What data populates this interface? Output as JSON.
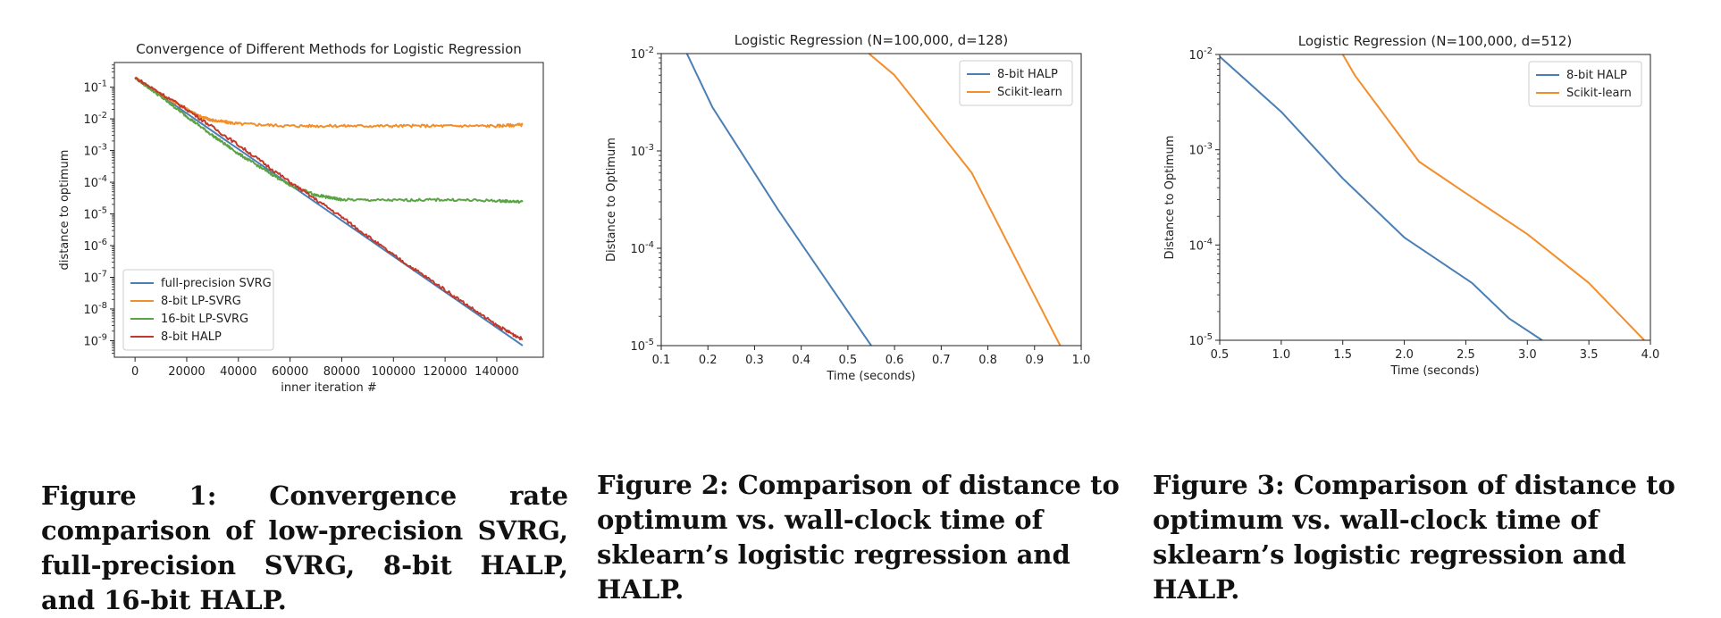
{
  "colors": {
    "blue": "#4a7fb5",
    "orange": "#f28e2b",
    "green": "#5ba345",
    "red": "#c0392b",
    "axis": "#222222"
  },
  "captions": [
    "Figure 1: Convergence rate comparison of low-precision SVRG, full-precision SVRG, 8-bit HALP, and 16-bit HALP.",
    "Figure 2: Comparison of distance to optimum vs. wall-clock time of sklearn’s logistic regression and HALP.",
    "Figure 3: Comparison of distance to optimum vs. wall-clock time of sklearn’s logistic regression and HALP."
  ],
  "chart_data": [
    {
      "type": "line",
      "title": "Convergence of Different Methods for Logistic Regression",
      "xlabel": "inner iteration #",
      "ylabel": "distance to optimum",
      "xlim": [
        -8000,
        158000
      ],
      "ylim": [
        3e-10,
        0.6
      ],
      "yscale": "log",
      "grid": false,
      "legend_position": "lower-left",
      "x_ticks": [
        0,
        20000,
        40000,
        60000,
        80000,
        100000,
        120000,
        140000
      ],
      "x_tick_labels": [
        "0",
        "20000",
        "40000",
        "60000",
        "80000",
        "100000",
        "120000",
        "140000"
      ],
      "y_ticks": [
        1e-09,
        1e-08,
        1e-07,
        1e-06,
        1e-05,
        0.0001,
        0.001,
        0.01,
        0.1
      ],
      "y_tick_labels": [
        "10^-9",
        "10^-8",
        "10^-7",
        "10^-6",
        "10^-5",
        "10^-4",
        "10^-3",
        "10^-2",
        "10^-1"
      ],
      "series": [
        {
          "name": "full-precision SVRG",
          "color": "#4a7fb5",
          "noise": 0,
          "x": [
            0,
            150000
          ],
          "y": [
            0.2,
            7e-10
          ]
        },
        {
          "name": "8-bit LP-SVRG",
          "color": "#f28e2b",
          "noise": 0.045,
          "x": [
            0,
            10000,
            20000,
            25000,
            30000,
            40000,
            60000,
            80000,
            100000,
            120000,
            140000,
            150000
          ],
          "y": [
            0.2,
            0.06,
            0.02,
            0.012,
            0.009,
            0.007,
            0.006,
            0.006,
            0.006,
            0.006,
            0.006,
            0.0065
          ]
        },
        {
          "name": "16-bit LP-SVRG",
          "color": "#5ba345",
          "noise": 0.04,
          "x": [
            0,
            10000,
            20000,
            30000,
            40000,
            50000,
            60000,
            70000,
            75000,
            80000,
            100000,
            120000,
            140000,
            150000
          ],
          "y": [
            0.2,
            0.05,
            0.012,
            0.003,
            0.0008,
            0.00025,
            8e-05,
            4e-05,
            3.3e-05,
            2.8e-05,
            2.7e-05,
            2.8e-05,
            2.6e-05,
            2.4e-05
          ]
        },
        {
          "name": "8-bit HALP",
          "color": "#c0392b",
          "noise": 0.05,
          "x": [
            0,
            20000,
            40000,
            60000,
            80000,
            100000,
            120000,
            140000,
            150000
          ],
          "y": [
            0.2,
            0.02,
            0.0015,
            0.0001,
            8e-06,
            5e-07,
            4e-08,
            3e-09,
            1.1e-09
          ]
        }
      ]
    },
    {
      "type": "line",
      "title": "Logistic Regression (N=100,000, d=128)",
      "xlabel": "Time (seconds)",
      "ylabel": "Distance to Optimum",
      "xlim": [
        0.1,
        1.0
      ],
      "ylim": [
        1e-05,
        0.01
      ],
      "yscale": "log",
      "grid": false,
      "legend_position": "top-right",
      "x_ticks": [
        0.1,
        0.2,
        0.3,
        0.4,
        0.5,
        0.6,
        0.7,
        0.8,
        0.9,
        1.0
      ],
      "x_tick_labels": [
        "0.1",
        "0.2",
        "0.3",
        "0.4",
        "0.5",
        "0.6",
        "0.7",
        "0.8",
        "0.9",
        "1.0"
      ],
      "y_ticks": [
        1e-05,
        0.0001,
        0.001,
        0.01
      ],
      "y_tick_labels": [
        "10^-5",
        "10^-4",
        "10^-3",
        "10^-2"
      ],
      "series": [
        {
          "name": "8-bit HALP",
          "color": "#4a7fb5",
          "noise": 0,
          "x": [
            0.155,
            0.21,
            0.35,
            0.55
          ],
          "y": [
            0.01,
            0.0028,
            0.00025,
            1e-05
          ]
        },
        {
          "name": "Scikit-learn",
          "color": "#f28e2b",
          "noise": 0,
          "x": [
            0.545,
            0.6,
            0.765,
            0.955
          ],
          "y": [
            0.01,
            0.006,
            0.0006,
            1e-05
          ]
        }
      ]
    },
    {
      "type": "line",
      "title": "Logistic Regression (N=100,000, d=512)",
      "xlabel": "Time (seconds)",
      "ylabel": "Distance to Optimum",
      "xlim": [
        0.5,
        4.0
      ],
      "ylim": [
        1e-05,
        0.01
      ],
      "yscale": "log",
      "grid": false,
      "legend_position": "top-right",
      "x_ticks": [
        0.5,
        1.0,
        1.5,
        2.0,
        2.5,
        3.0,
        3.5,
        4.0
      ],
      "x_tick_labels": [
        "0.5",
        "1.0",
        "1.5",
        "2.0",
        "2.5",
        "3.0",
        "3.5",
        "4.0"
      ],
      "y_ticks": [
        1e-05,
        0.0001,
        0.001,
        0.01
      ],
      "y_tick_labels": [
        "10^-5",
        "10^-4",
        "10^-3",
        "10^-2"
      ],
      "series": [
        {
          "name": "8-bit HALP",
          "color": "#4a7fb5",
          "noise": 0,
          "x": [
            0.5,
            1.0,
            1.5,
            2.0,
            2.55,
            2.85,
            3.12
          ],
          "y": [
            0.0095,
            0.0025,
            0.0005,
            0.00012,
            4e-05,
            1.7e-05,
            1e-05
          ]
        },
        {
          "name": "Scikit-learn",
          "color": "#f28e2b",
          "noise": 0,
          "x": [
            1.5,
            1.6,
            2.12,
            2.5,
            3.0,
            3.5,
            3.95
          ],
          "y": [
            0.01,
            0.006,
            0.00075,
            0.00035,
            0.00013,
            4e-05,
            1e-05
          ]
        }
      ]
    }
  ]
}
